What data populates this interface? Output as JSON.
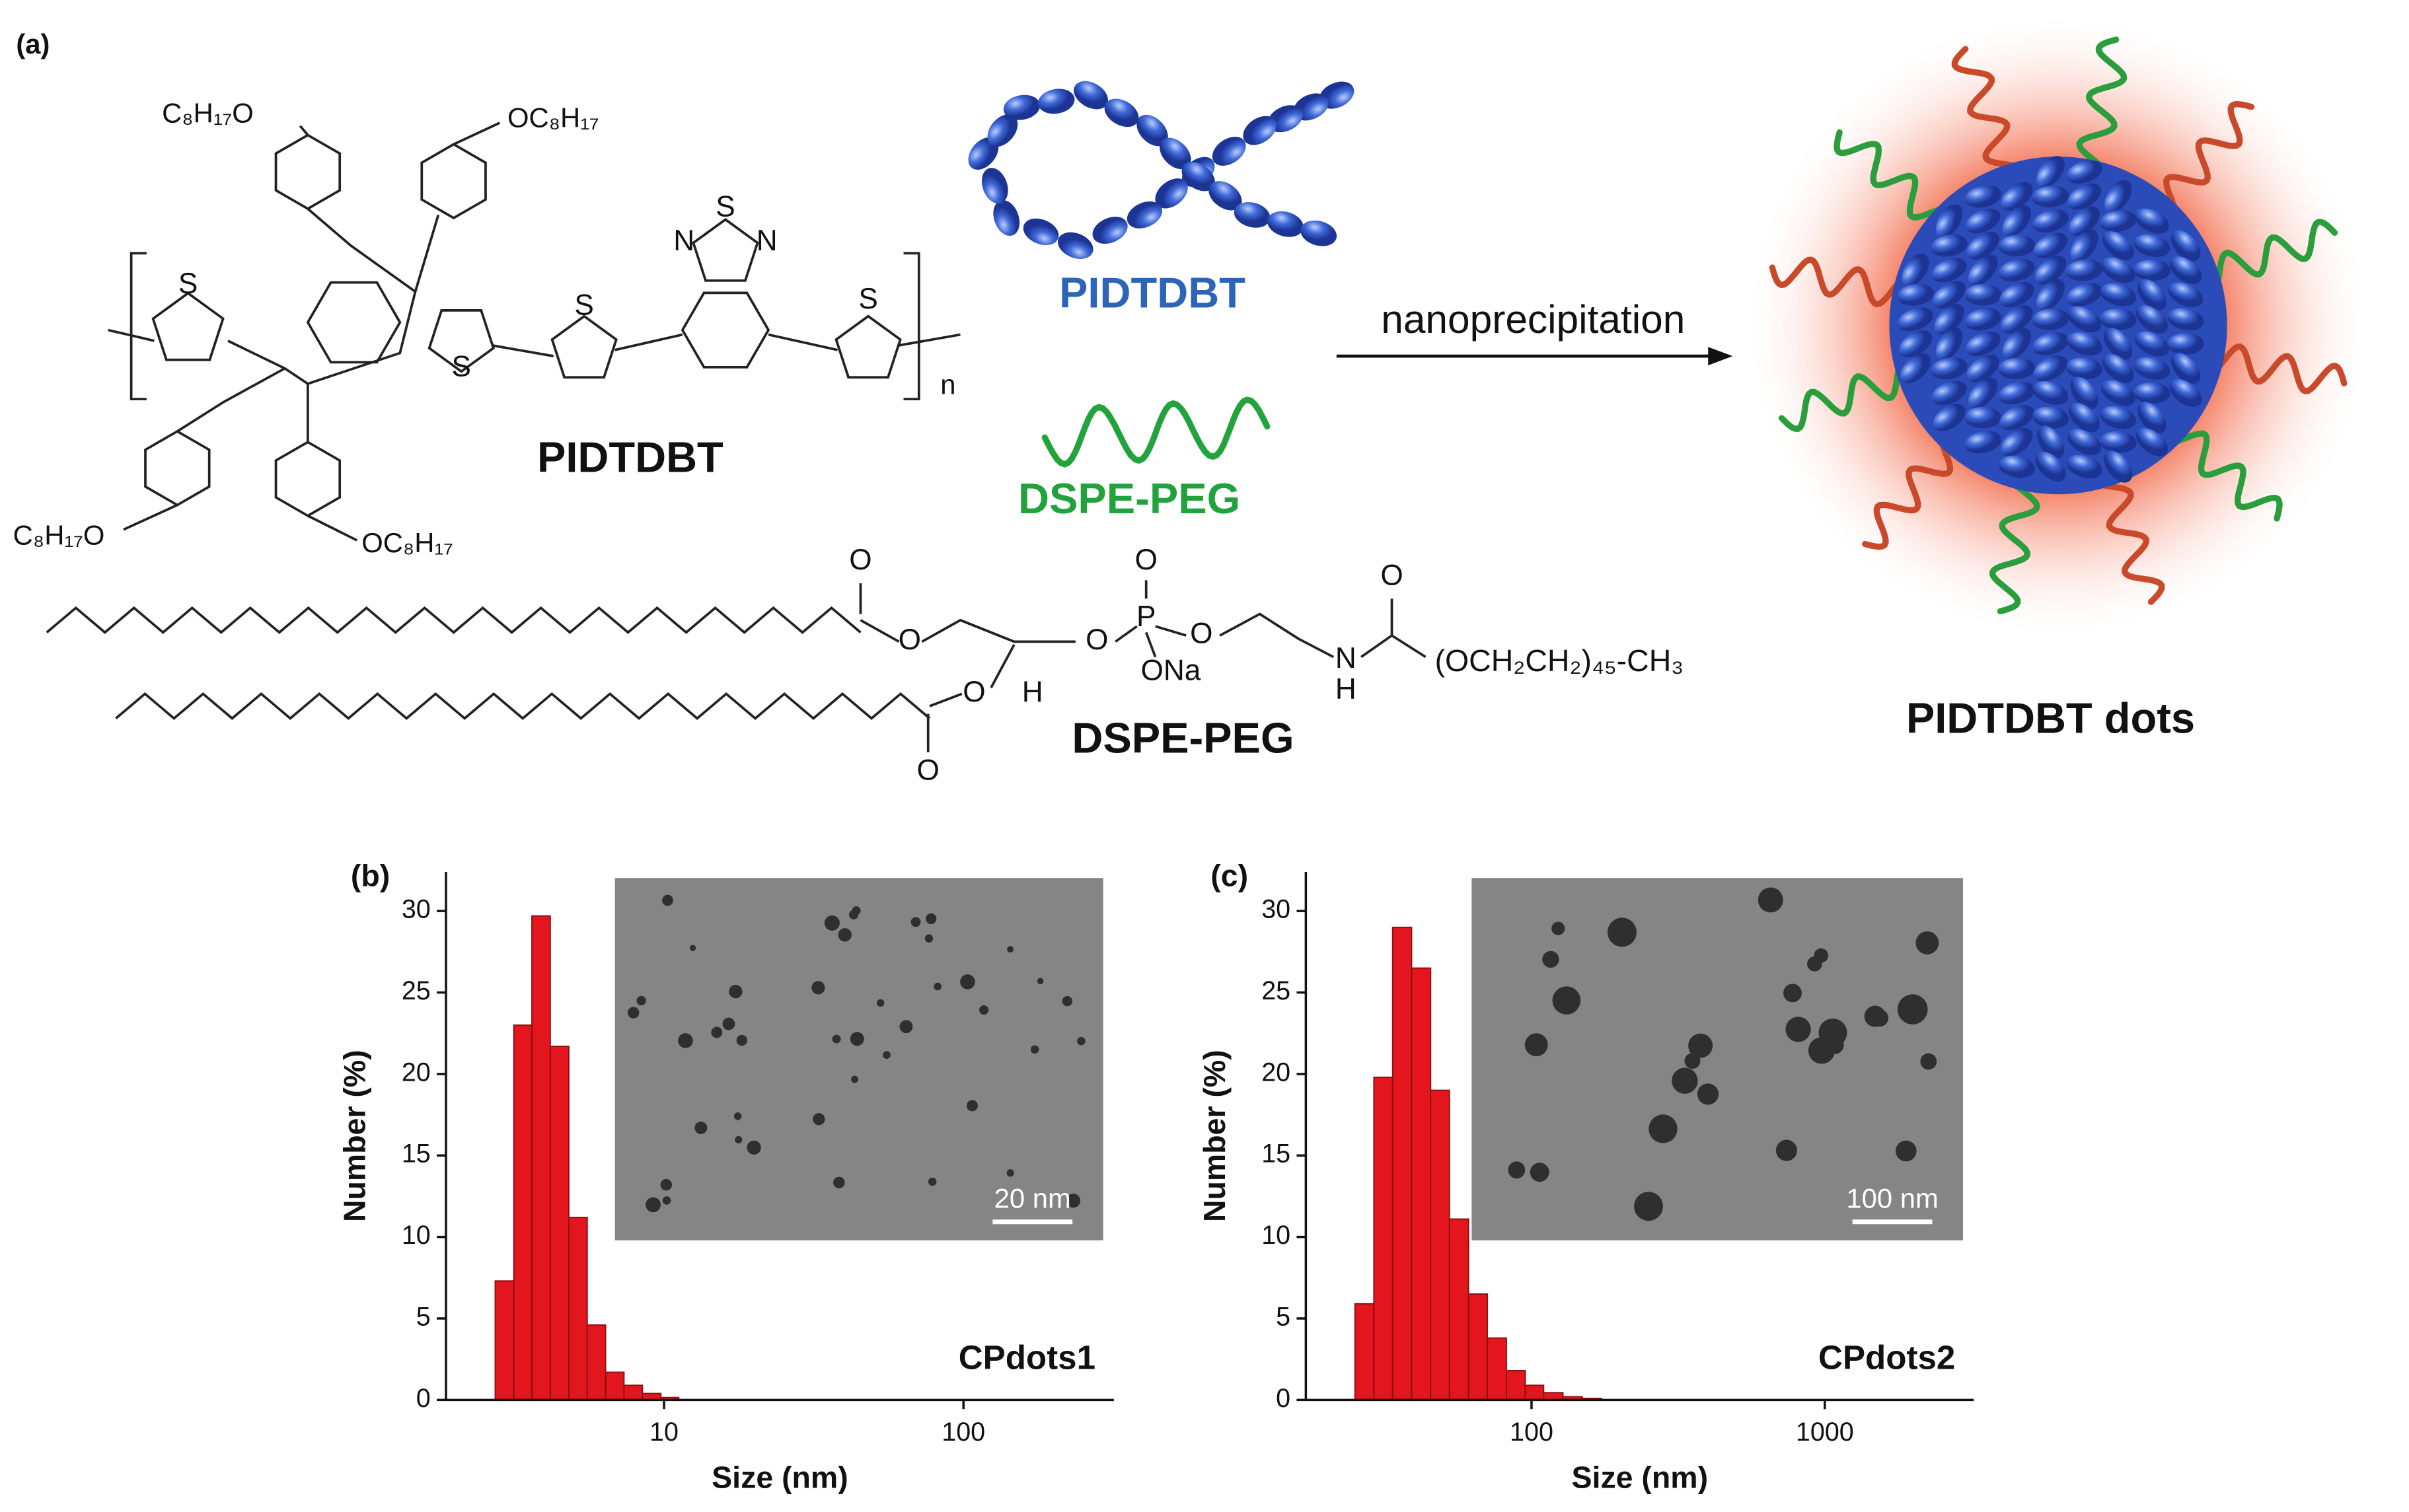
{
  "panel_a": {
    "label": "(a)",
    "polymer_name": "PIDTDBT",
    "polymer_label": "PIDTDBT",
    "lipid_label": "DSPE-PEG",
    "arrow_label": "nanoprecipitation",
    "product": "PIDTDBT dots",
    "lipid_name": "DSPE-PEG",
    "substituents": [
      "C₈H₁₇O",
      "OC₈H₁₇",
      "C₈H₁₇O",
      "OC₈H₁₇"
    ],
    "repeat": "n",
    "polymer_atoms": [
      "S",
      "S",
      "S",
      "S",
      "N",
      "S",
      "N"
    ],
    "lipid_atoms": [
      "O",
      "O",
      "O",
      "O",
      "H",
      "O",
      "P",
      "O",
      "O",
      "ONa",
      "N",
      "H",
      "O"
    ],
    "peg": "(OCH₂CH₂)₄₅-CH₃"
  },
  "chart_data": [
    {
      "type": "histogram",
      "panel": "(b)",
      "label": "CPdots1",
      "xlabel": "Size (nm)",
      "ylabel": "Number (%)",
      "log_x": true,
      "color": "#e3161e",
      "bins": [
        2.73,
        3.15,
        3.62,
        4.17,
        4.81,
        5.54,
        6.38,
        7.35,
        8.47,
        9.76,
        11.2
      ],
      "values": [
        7.3,
        23,
        29.7,
        21.7,
        11.2,
        4.6,
        1.7,
        0.9,
        0.4,
        0.15
      ],
      "xlim": [
        1.87,
        318
      ],
      "ylim": [
        0,
        32.4
      ],
      "xticks": [
        10,
        100
      ],
      "yticks": [
        0,
        5,
        10,
        15,
        20,
        25,
        30
      ],
      "scale_bar": "20 nm"
    },
    {
      "type": "histogram",
      "panel": "(c)",
      "label": "CPdots2",
      "xlabel": "Size (nm)",
      "ylabel": "Number (%)",
      "log_x": true,
      "color": "#e3161e",
      "bins": [
        25,
        29,
        33.6,
        39,
        45.3,
        52.5,
        61,
        70.7,
        82.1,
        95.2,
        110,
        128,
        149,
        173
      ],
      "values": [
        5.9,
        19.8,
        29,
        26.5,
        19,
        11.1,
        6.5,
        3.8,
        1.8,
        0.9,
        0.45,
        0.2,
        0.1
      ],
      "xlim": [
        17,
        3220
      ],
      "ylim": [
        0,
        32.4
      ],
      "xticks": [
        100,
        1000
      ],
      "yticks": [
        0,
        5,
        10,
        15,
        20,
        25,
        30
      ],
      "scale_bar": "100 nm"
    }
  ]
}
